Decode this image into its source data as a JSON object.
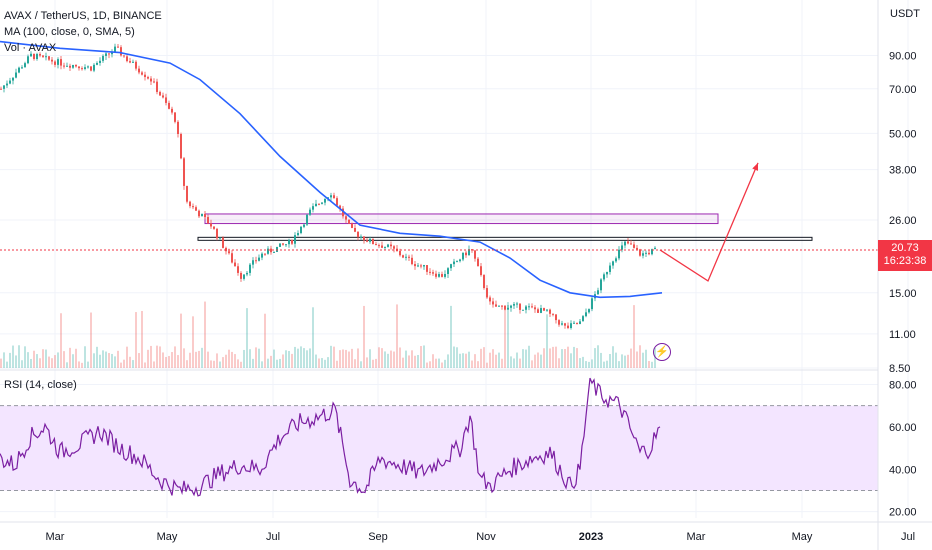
{
  "header": {
    "symbol_line": "AVAX / TetherUS, 1D, BINANCE",
    "ma_line": "MA (100, close, 0, SMA, 5)",
    "vol_line": "Vol · AVAX",
    "rsi_line": "RSI (14, close)",
    "currency": "USDT"
  },
  "last_price": {
    "value": "20.73",
    "countdown": "16:23:38"
  },
  "colors": {
    "up": "#26a69a",
    "down": "#ef5350",
    "ma": "#2962ff",
    "rsi": "#7b1fa2",
    "rsi_band": "#f3e5ff",
    "box_purple": "#9c27b0",
    "box_black": "#131722",
    "arrow": "#f23645"
  },
  "chart_data": [
    {
      "type": "candlestick",
      "title": "AVAX / TetherUS, 1D, BINANCE",
      "y_scale": "log",
      "ylim": [
        8.5,
        125
      ],
      "y_ticks": [
        {
          "v": 90,
          "label": "90.00"
        },
        {
          "v": 70,
          "label": "70.00"
        },
        {
          "v": 50,
          "label": "50.00"
        },
        {
          "v": 38,
          "label": "38.00"
        },
        {
          "v": 26,
          "label": "26.00"
        },
        {
          "v": 15,
          "label": "15.00"
        },
        {
          "v": 11,
          "label": "11.00"
        },
        {
          "v": 8.5,
          "label": "8.50"
        }
      ],
      "x_tick_labels": [
        "Mar",
        "May",
        "Jul",
        "Sep",
        "Nov",
        "2023",
        "Mar",
        "May",
        "Jul"
      ],
      "x_ticks_index": [
        55,
        167,
        273,
        378,
        486,
        591,
        696,
        802,
        908
      ],
      "close_anchors": [
        [
          0,
          70
        ],
        [
          30,
          90
        ],
        [
          60,
          85
        ],
        [
          90,
          82
        ],
        [
          115,
          95
        ],
        [
          125,
          88
        ],
        [
          150,
          75
        ],
        [
          175,
          55
        ],
        [
          185,
          30
        ],
        [
          210,
          25
        ],
        [
          240,
          17
        ],
        [
          260,
          20
        ],
        [
          290,
          22
        ],
        [
          310,
          28
        ],
        [
          330,
          32
        ],
        [
          350,
          24
        ],
        [
          370,
          22
        ],
        [
          390,
          21
        ],
        [
          410,
          19
        ],
        [
          440,
          17
        ],
        [
          470,
          21
        ],
        [
          490,
          13.5
        ],
        [
          520,
          13.5
        ],
        [
          545,
          13
        ],
        [
          565,
          11.5
        ],
        [
          580,
          12
        ],
        [
          595,
          15
        ],
        [
          610,
          19
        ],
        [
          625,
          22
        ],
        [
          640,
          20
        ],
        [
          655,
          20.73
        ]
      ],
      "series": [
        {
          "name": "MA (100, close, 0, SMA, 5)",
          "x": [
            0,
            60,
            120,
            170,
            200,
            240,
            280,
            320,
            360,
            400,
            440,
            480,
            510,
            540,
            570,
            600,
            630,
            662
          ],
          "y": [
            100,
            95,
            92,
            85,
            75,
            58,
            42,
            32,
            25,
            23.5,
            23,
            22,
            19.5,
            16.5,
            15,
            14.5,
            14.6,
            15
          ]
        }
      ],
      "zones": [
        {
          "name": "upper-zone",
          "from_x": 205,
          "to_x": 718,
          "y_low": 25.3,
          "y_high": 27.2
        },
        {
          "name": "lower-zone",
          "from_x": 198,
          "to_x": 812,
          "y_low": 22.3,
          "y_high": 22.8
        }
      ],
      "projection": {
        "x": [
          660,
          708,
          758
        ],
        "y": [
          20.73,
          16.4,
          40
        ]
      },
      "last_value": 20.73
    },
    {
      "type": "line",
      "title": "RSI (14, close)",
      "ylim": [
        17,
        84
      ],
      "y_ticks": [
        80,
        60,
        40,
        20
      ],
      "y_tick_labels": [
        "80.00",
        "60.00",
        "40.00",
        "20.00"
      ],
      "band": [
        30,
        70
      ],
      "x": [
        0,
        15,
        30,
        45,
        60,
        80,
        100,
        120,
        140,
        160,
        180,
        200,
        220,
        240,
        260,
        280,
        300,
        320,
        335,
        350,
        365,
        380,
        400,
        420,
        440,
        460,
        470,
        480,
        490,
        510,
        530,
        550,
        570,
        580,
        590,
        600,
        620,
        640,
        650,
        660
      ],
      "y": [
        45,
        42,
        55,
        60,
        48,
        52,
        58,
        50,
        45,
        35,
        30,
        32,
        38,
        42,
        40,
        55,
        62,
        65,
        68,
        35,
        30,
        45,
        42,
        38,
        44,
        50,
        65,
        36,
        32,
        40,
        45,
        48,
        32,
        40,
        82,
        75,
        70,
        48,
        50,
        60
      ]
    }
  ]
}
